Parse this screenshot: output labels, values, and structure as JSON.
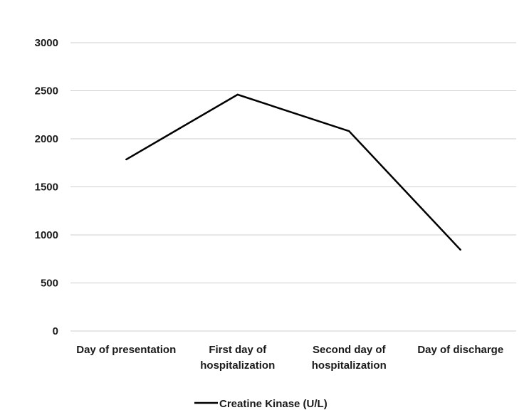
{
  "chart_data": {
    "type": "line",
    "categories": [
      [
        "Day of presentation"
      ],
      [
        "First day of",
        "hospitalization"
      ],
      [
        "Second day of",
        "hospitalization"
      ],
      [
        "Day of discharge"
      ]
    ],
    "series": [
      {
        "name": "Creatine Kinase (U/L)",
        "values": [
          1785,
          2460,
          2080,
          845
        ],
        "color": "#000000"
      }
    ],
    "ylim": [
      0,
      3000
    ],
    "yticks": [
      0,
      500,
      1000,
      1500,
      2000,
      2500,
      3000
    ],
    "grid": true,
    "legend_position": "bottom-center"
  }
}
